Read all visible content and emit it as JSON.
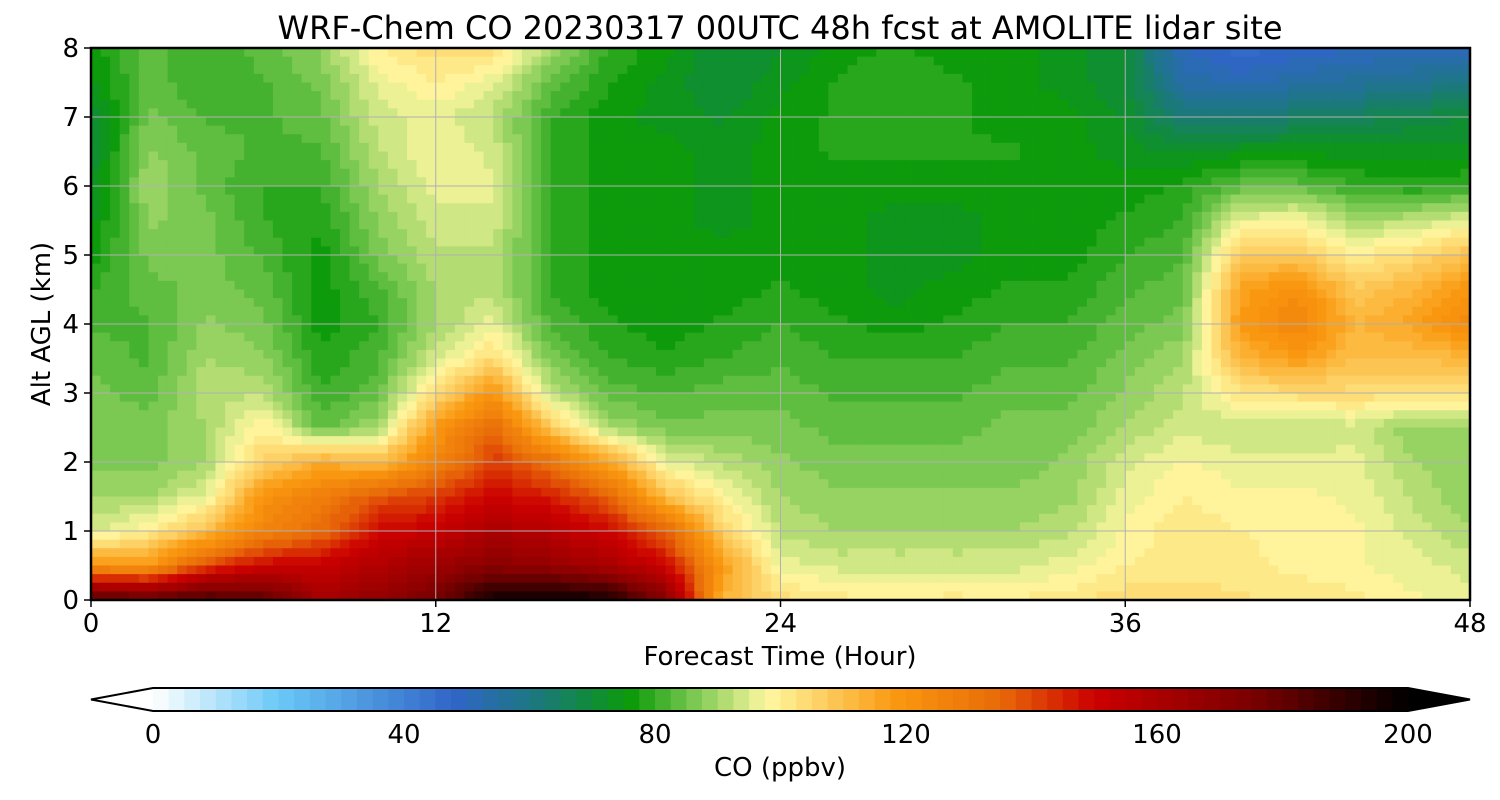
{
  "chart_data": {
    "type": "heatmap",
    "title": "WRF-Chem CO  20230317 00UTC 48h fcst at AMOLITE lidar site",
    "xlabel": "Forecast Time (Hour)",
    "ylabel": "Alt AGL (km)",
    "xlim": [
      0,
      48
    ],
    "ylim": [
      0,
      8
    ],
    "x_ticks": [
      0,
      12,
      24,
      36,
      48
    ],
    "y_ticks": [
      0,
      1,
      2,
      3,
      4,
      5,
      6,
      7,
      8
    ],
    "grid": true,
    "x": [
      0,
      2,
      4,
      6,
      8,
      10,
      12,
      14,
      16,
      18,
      20,
      22,
      24,
      26,
      28,
      30,
      32,
      34,
      36,
      38,
      40,
      42,
      44,
      46,
      48
    ],
    "y": [
      0,
      0.5,
      1,
      1.5,
      2,
      2.5,
      3,
      3.5,
      4,
      4.5,
      5,
      5.5,
      6,
      6.5,
      7,
      7.5,
      8
    ],
    "z": [
      [
        185,
        182,
        186,
        182,
        162,
        168,
        176,
        196,
        198,
        196,
        172,
        112,
        104,
        101,
        100,
        101,
        100,
        102,
        104,
        104,
        103,
        102,
        101,
        98,
        96
      ],
      [
        120,
        118,
        140,
        150,
        152,
        158,
        164,
        170,
        166,
        160,
        150,
        118,
        96,
        94,
        94,
        94,
        94,
        96,
        100,
        101,
        101,
        99,
        98,
        96,
        94
      ],
      [
        94,
        100,
        110,
        126,
        134,
        150,
        152,
        160,
        156,
        150,
        136,
        106,
        92,
        90,
        90,
        90,
        90,
        92,
        98,
        102,
        100,
        99,
        98,
        94,
        90
      ],
      [
        90,
        90,
        96,
        120,
        128,
        138,
        142,
        150,
        146,
        136,
        110,
        98,
        90,
        88,
        88,
        88,
        88,
        89,
        96,
        100,
        98,
        98,
        97,
        92,
        88
      ],
      [
        86,
        86,
        90,
        106,
        114,
        110,
        126,
        142,
        132,
        116,
        96,
        92,
        88,
        86,
        86,
        86,
        86,
        88,
        94,
        98,
        96,
        96,
        96,
        90,
        88
      ],
      [
        86,
        86,
        90,
        100,
        84,
        90,
        118,
        134,
        108,
        90,
        86,
        86,
        86,
        84,
        84,
        84,
        86,
        86,
        90,
        94,
        92,
        92,
        94,
        88,
        88
      ],
      [
        86,
        84,
        92,
        92,
        80,
        84,
        104,
        120,
        92,
        84,
        82,
        84,
        84,
        82,
        82,
        82,
        84,
        84,
        88,
        92,
        102,
        104,
        104,
        104,
        104
      ],
      [
        84,
        82,
        90,
        88,
        78,
        82,
        94,
        104,
        86,
        80,
        78,
        80,
        82,
        80,
        80,
        80,
        82,
        82,
        86,
        90,
        112,
        118,
        110,
        110,
        112
      ],
      [
        82,
        82,
        88,
        86,
        76,
        80,
        90,
        96,
        82,
        78,
        76,
        78,
        80,
        78,
        76,
        78,
        80,
        80,
        84,
        86,
        118,
        126,
        112,
        116,
        124
      ],
      [
        80,
        84,
        86,
        84,
        76,
        82,
        90,
        92,
        80,
        76,
        76,
        76,
        78,
        76,
        74,
        76,
        78,
        78,
        82,
        84,
        116,
        122,
        108,
        112,
        120
      ],
      [
        76,
        86,
        86,
        82,
        76,
        86,
        92,
        92,
        80,
        76,
        76,
        76,
        76,
        76,
        74,
        74,
        76,
        76,
        80,
        82,
        108,
        108,
        100,
        104,
        110
      ],
      [
        74,
        88,
        86,
        80,
        78,
        88,
        94,
        94,
        80,
        76,
        76,
        74,
        76,
        76,
        74,
        74,
        76,
        76,
        78,
        80,
        96,
        98,
        90,
        92,
        96
      ],
      [
        72,
        90,
        84,
        80,
        80,
        90,
        96,
        96,
        80,
        76,
        76,
        74,
        76,
        76,
        76,
        76,
        76,
        76,
        76,
        78,
        84,
        84,
        80,
        78,
        80
      ],
      [
        70,
        88,
        84,
        82,
        82,
        92,
        98,
        94,
        80,
        76,
        76,
        74,
        76,
        78,
        78,
        78,
        78,
        76,
        74,
        72,
        74,
        74,
        74,
        74,
        74
      ],
      [
        70,
        86,
        82,
        82,
        84,
        94,
        96,
        92,
        80,
        76,
        74,
        72,
        76,
        78,
        80,
        78,
        76,
        76,
        72,
        62,
        62,
        64,
        66,
        68,
        70
      ],
      [
        74,
        84,
        80,
        82,
        86,
        96,
        100,
        96,
        84,
        78,
        74,
        70,
        74,
        78,
        80,
        78,
        76,
        74,
        70,
        54,
        52,
        54,
        56,
        58,
        60
      ],
      [
        76,
        84,
        80,
        84,
        88,
        100,
        104,
        104,
        90,
        80,
        76,
        70,
        72,
        76,
        78,
        76,
        76,
        74,
        70,
        50,
        46,
        48,
        50,
        50,
        50
      ]
    ],
    "colorbar": {
      "label": "CO  (ppbv)",
      "vmin": 0,
      "vmax": 200,
      "ticks": [
        "0",
        "40",
        "80",
        "120",
        "160",
        "200"
      ],
      "extend": "both",
      "stops": [
        {
          "v": 0,
          "c": "#ffffff"
        },
        {
          "v": 20,
          "c": "#6ac8f6"
        },
        {
          "v": 48,
          "c": "#3065c8"
        },
        {
          "v": 62,
          "c": "#1a7a78"
        },
        {
          "v": 76,
          "c": "#0a9a0a"
        },
        {
          "v": 86,
          "c": "#78c850"
        },
        {
          "v": 98,
          "c": "#fff8a0"
        },
        {
          "v": 118,
          "c": "#fa9a10"
        },
        {
          "v": 135,
          "c": "#e86a08"
        },
        {
          "v": 150,
          "c": "#cc0000"
        },
        {
          "v": 175,
          "c": "#7a0000"
        },
        {
          "v": 200,
          "c": "#000000"
        }
      ]
    }
  }
}
